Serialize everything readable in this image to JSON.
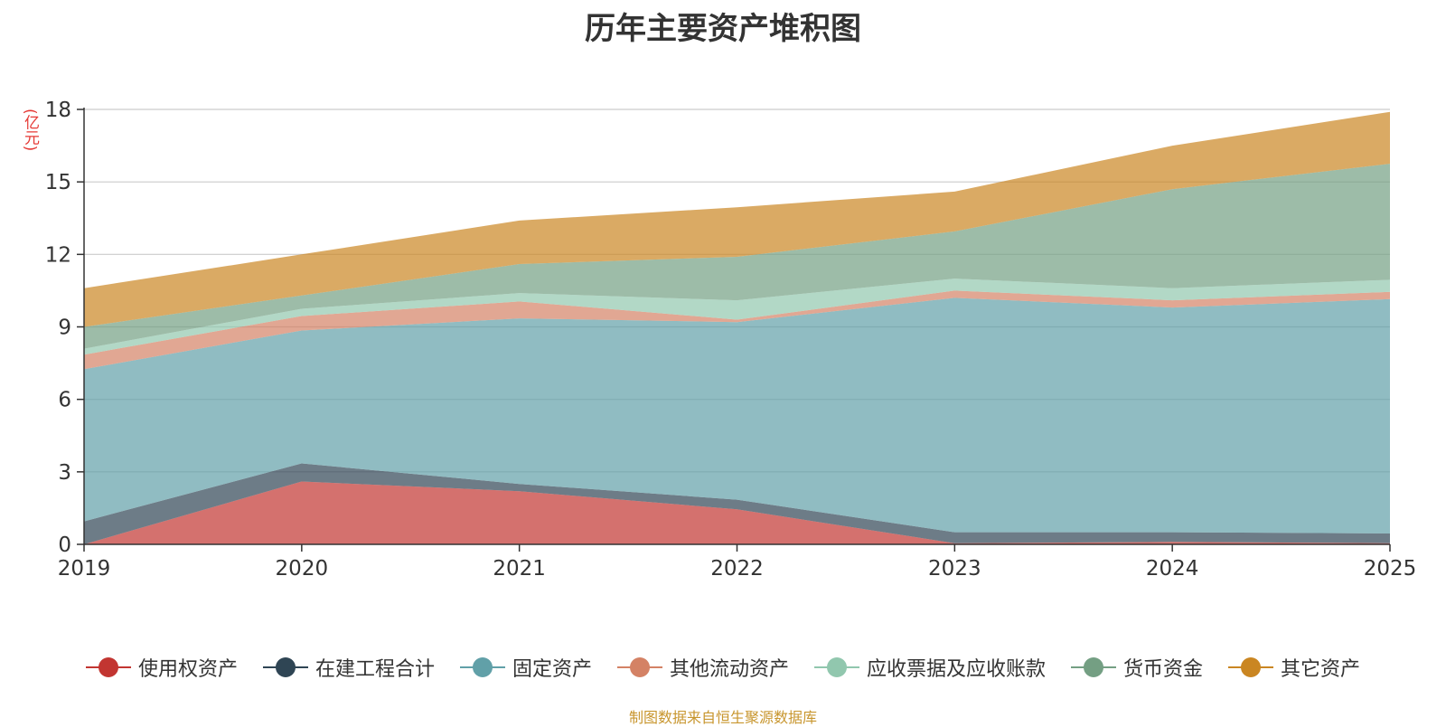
{
  "chart_data": {
    "type": "area",
    "stacked": true,
    "title": "历年主要资产堆积图",
    "ylabel": "(亿元)",
    "xlabel": "",
    "categories": [
      "2019",
      "2020",
      "2021",
      "2022",
      "2023",
      "2024",
      "2025"
    ],
    "ylim": [
      0,
      18
    ],
    "yticks": [
      0,
      3,
      6,
      9,
      12,
      15,
      18
    ],
    "grid": true,
    "legend_position": "bottom",
    "series": [
      {
        "name": "使用权资产",
        "color": "#c23531",
        "values": [
          0.0,
          2.6,
          2.2,
          1.45,
          0.05,
          0.1,
          0.05
        ]
      },
      {
        "name": "在建工程合计",
        "color": "#2f4554",
        "values": [
          0.95,
          0.75,
          0.3,
          0.4,
          0.45,
          0.4,
          0.4
        ]
      },
      {
        "name": "固定资产",
        "color": "#61a0a8",
        "values": [
          6.3,
          5.5,
          6.85,
          7.35,
          9.7,
          9.3,
          9.7
        ]
      },
      {
        "name": "其他流动资产",
        "color": "#d48265",
        "values": [
          0.6,
          0.6,
          0.7,
          0.1,
          0.3,
          0.3,
          0.3
        ]
      },
      {
        "name": "应收票据及应收账款",
        "color": "#91c7ae",
        "values": [
          0.25,
          0.3,
          0.35,
          0.8,
          0.5,
          0.5,
          0.5
        ]
      },
      {
        "name": "货币资金",
        "color": "#749f83",
        "values": [
          0.9,
          0.55,
          1.2,
          1.8,
          1.95,
          4.1,
          4.8
        ]
      },
      {
        "name": "其它资产",
        "color": "#ca8622",
        "values": [
          1.6,
          1.7,
          1.8,
          2.05,
          1.65,
          1.8,
          2.15
        ]
      }
    ]
  },
  "source_note": "制图数据来自恒生聚源数据库"
}
